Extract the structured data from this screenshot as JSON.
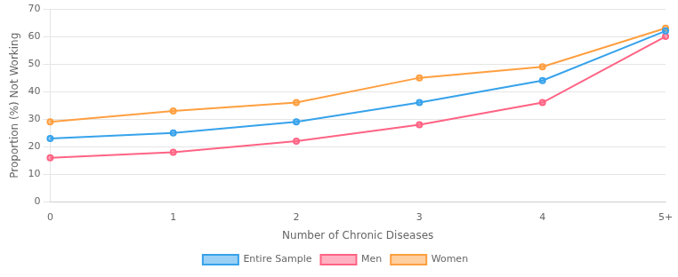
{
  "chart_data": {
    "type": "line",
    "xlabel": "Number of Chronic Diseases",
    "ylabel": "Proportion (%) Not Working",
    "categories": [
      "0",
      "1",
      "2",
      "3",
      "4",
      "5+"
    ],
    "series": [
      {
        "name": "Entire Sample",
        "values": [
          23,
          25,
          29,
          36,
          44,
          62
        ]
      },
      {
        "name": "Men",
        "values": [
          16,
          18,
          22,
          28,
          36,
          60
        ]
      },
      {
        "name": "Women",
        "values": [
          29,
          33,
          36,
          45,
          49,
          63
        ]
      }
    ],
    "marker": "circle",
    "ylim": [
      0,
      70
    ],
    "yticks": [
      0,
      10,
      20,
      30,
      40,
      50,
      60,
      70
    ],
    "grid": true,
    "legend": "bottom"
  }
}
